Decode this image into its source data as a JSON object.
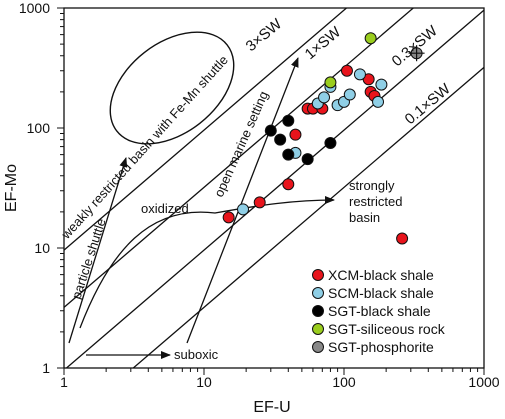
{
  "chart_data": {
    "type": "scatter",
    "xscale": "log",
    "yscale": "log",
    "xlim": [
      1,
      1000
    ],
    "ylim": [
      1,
      1000
    ],
    "xlabel": "EF-U",
    "ylabel": "EF-Mo",
    "x_ticks": [
      "1",
      "10",
      "100",
      "1000"
    ],
    "y_ticks": [
      "1",
      "10",
      "100",
      "1000"
    ],
    "legend_position": "bottom-right",
    "sw_lines": [
      {
        "label": "3×SW",
        "factor": 9.6
      },
      {
        "label": "1×SW",
        "factor": 3.2
      },
      {
        "label": "0.3×SW",
        "factor": 0.96
      },
      {
        "label": "0.1×SW",
        "factor": 0.32
      }
    ],
    "annotations": {
      "weakly_restricted": "weakly restricted basin with Fe-Mn shuttle",
      "particle_shuttle": "particle shuttle",
      "open_marine": "open marine setting",
      "oxidized": "oxidized",
      "strongly_restricted": "strongly restricted basin",
      "suboxic": "suboxic"
    },
    "series": [
      {
        "name": "XCM-black shale",
        "color": "#e8141c",
        "points": [
          [
            15,
            18
          ],
          [
            25,
            24
          ],
          [
            45,
            88
          ],
          [
            40,
            34
          ],
          [
            55,
            145
          ],
          [
            60,
            145
          ],
          [
            70,
            145
          ],
          [
            105,
            300
          ],
          [
            150,
            255
          ],
          [
            155,
            200
          ],
          [
            165,
            185
          ],
          [
            260,
            12
          ]
        ]
      },
      {
        "name": "SCM-black shale",
        "color": "#8fcfe6",
        "points": [
          [
            19,
            21
          ],
          [
            45,
            62
          ],
          [
            65,
            160
          ],
          [
            72,
            180
          ],
          [
            80,
            220
          ],
          [
            90,
            155
          ],
          [
            100,
            165
          ],
          [
            110,
            190
          ],
          [
            130,
            280
          ],
          [
            175,
            165
          ],
          [
            185,
            230
          ]
        ]
      },
      {
        "name": "SGT-black shale",
        "color": "#000000",
        "points": [
          [
            30,
            95
          ],
          [
            35,
            80
          ],
          [
            40,
            115
          ],
          [
            40,
            60
          ],
          [
            55,
            55
          ],
          [
            80,
            75
          ]
        ]
      },
      {
        "name": "SGT-siliceous rock",
        "color": "#9acd1e",
        "points": [
          [
            80,
            240
          ],
          [
            155,
            560
          ]
        ]
      },
      {
        "name": "SGT-phosphorite",
        "color": "#888888",
        "points": [
          [
            330,
            420
          ]
        ]
      }
    ]
  }
}
